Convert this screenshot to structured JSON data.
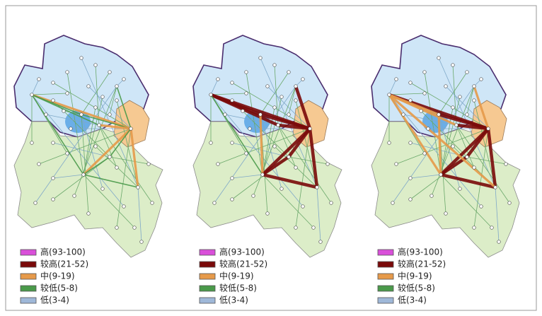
{
  "panels": [
    {
      "legend": [
        {
          "label": "高(93-100)"
        },
        {
          "label": "较高(21-52)"
        },
        {
          "label": "中(9-19)"
        },
        {
          "label": "较低(5-8)"
        },
        {
          "label": "低(3-4)"
        }
      ]
    },
    {
      "legend": [
        {
          "label": "高(93-100)"
        },
        {
          "label": "较高(21-52)"
        },
        {
          "label": "中(9-19)"
        },
        {
          "label": "较低(5-8)"
        },
        {
          "label": "低(3-4)"
        }
      ]
    },
    {
      "legend": [
        {
          "label": "高(93-100)"
        },
        {
          "label": "较高(21-52)"
        },
        {
          "label": "中(9-19)"
        },
        {
          "label": "较低(5-8)"
        },
        {
          "label": "低(3-4)"
        }
      ]
    }
  ]
}
